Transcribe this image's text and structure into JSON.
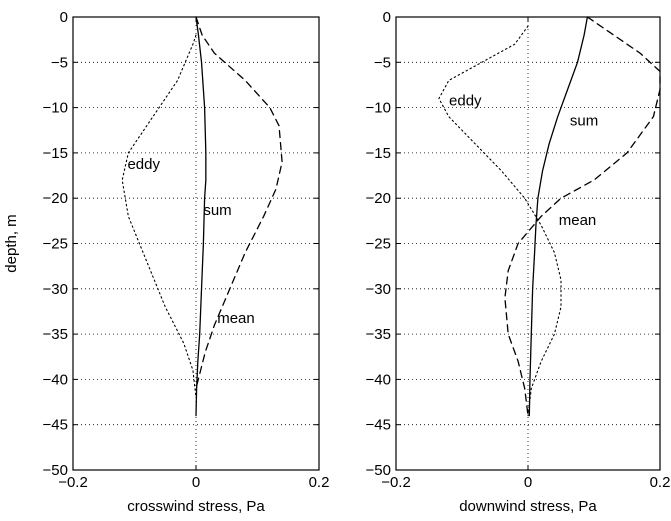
{
  "chart_data": [
    {
      "type": "line",
      "xlabel": "crosswind stress, Pa",
      "ylabel": "depth, m",
      "xlim": [
        -0.2,
        0.2
      ],
      "ylim": [
        -50,
        0
      ],
      "xticks": [
        -0.2,
        0,
        0.2
      ],
      "xtick_labels": [
        "−0.2",
        "0",
        "0.2"
      ],
      "yticks": [
        0,
        -5,
        -10,
        -15,
        -20,
        -25,
        -30,
        -35,
        -40,
        -45,
        -50
      ],
      "ytick_labels": [
        "0",
        "−5",
        "−10",
        "−15",
        "−20",
        "−25",
        "−30",
        "−35",
        "−40",
        "−45",
        "−50"
      ],
      "grid": true,
      "series": [
        {
          "name": "sum",
          "style": "solid",
          "x": [
            0.0,
            0.004,
            0.009,
            0.014,
            0.016,
            0.016,
            0.014,
            0.012,
            0.009,
            0.006,
            0.003,
            0.001,
            0.0
          ],
          "y": [
            0,
            -2,
            -5,
            -10,
            -15,
            -18,
            -20,
            -25,
            -30,
            -35,
            -38,
            -41,
            -44
          ]
        },
        {
          "name": "mean",
          "style": "dashed",
          "x": [
            0.0,
            0.01,
            0.03,
            0.08,
            0.12,
            0.135,
            0.14,
            0.13,
            0.11,
            0.08,
            0.055,
            0.03,
            0.015,
            0.0
          ],
          "y": [
            0,
            -2,
            -4,
            -7,
            -10,
            -12,
            -16,
            -19,
            -22,
            -26,
            -30,
            -34,
            -37,
            -41
          ]
        },
        {
          "name": "eddy",
          "style": "dotted",
          "x": [
            0.0,
            -0.005,
            -0.03,
            -0.08,
            -0.11,
            -0.12,
            -0.11,
            -0.08,
            -0.05,
            -0.02,
            -0.005,
            0.0
          ],
          "y": [
            -2,
            -3,
            -7,
            -12,
            -15,
            -18,
            -22,
            -27,
            -32,
            -36,
            -39,
            -42
          ]
        }
      ],
      "annotations": [
        {
          "text": "eddy",
          "x": -0.085,
          "y": -16.2
        },
        {
          "text": "sum",
          "x": 0.035,
          "y": -21.3
        },
        {
          "text": "mean",
          "x": 0.065,
          "y": -33.2
        }
      ]
    },
    {
      "type": "line",
      "xlabel": "downwind stress, Pa",
      "ylabel": "",
      "xlim": [
        -0.2,
        0.2
      ],
      "ylim": [
        -50,
        0
      ],
      "xticks": [
        -0.2,
        0,
        0.2
      ],
      "xtick_labels": [
        "−0.2",
        "0",
        "0.2"
      ],
      "yticks": [
        0,
        -5,
        -10,
        -15,
        -20,
        -25,
        -30,
        -35,
        -40,
        -45,
        -50
      ],
      "ytick_labels": [
        "0",
        "−5",
        "−10",
        "−15",
        "−20",
        "−25",
        "−30",
        "−35",
        "−40",
        "−45",
        "−50"
      ],
      "grid": true,
      "series": [
        {
          "name": "sum",
          "style": "solid",
          "x": [
            0.09,
            0.085,
            0.075,
            0.06,
            0.045,
            0.032,
            0.022,
            0.015,
            0.012,
            0.01,
            0.007,
            0.005,
            0.003,
            0.002
          ],
          "y": [
            0,
            -2,
            -5,
            -8,
            -11,
            -14,
            -17,
            -20,
            -23,
            -26,
            -30,
            -35,
            -40,
            -44
          ]
        },
        {
          "name": "mean",
          "style": "dashed",
          "x": [
            0.09,
            0.12,
            0.17,
            0.2,
            0.2,
            0.19,
            0.15,
            0.1,
            0.05,
            0.02,
            -0.015,
            -0.03,
            -0.035,
            -0.03,
            -0.015,
            -0.005,
            0.0
          ],
          "y": [
            0,
            -1.5,
            -4,
            -6,
            -8,
            -11,
            -15,
            -18,
            -20,
            -22,
            -25,
            -28,
            -31,
            -35,
            -38,
            -41,
            -44
          ]
        },
        {
          "name": "eddy",
          "style": "dotted",
          "x": [
            0.0,
            -0.02,
            -0.07,
            -0.12,
            -0.135,
            -0.12,
            -0.08,
            -0.04,
            -0.005,
            0.02,
            0.04,
            0.05,
            0.05,
            0.04,
            0.02,
            0.005,
            0.0
          ],
          "y": [
            -1,
            -3,
            -5,
            -7,
            -9,
            -11,
            -14,
            -17,
            -20,
            -23,
            -26,
            -29,
            -32,
            -35,
            -38,
            -41,
            -44
          ]
        }
      ],
      "annotations": [
        {
          "text": "eddy",
          "x": -0.095,
          "y": -9.2
        },
        {
          "text": "sum",
          "x": 0.085,
          "y": -11.4
        },
        {
          "text": "mean",
          "x": 0.075,
          "y": -22.4
        }
      ]
    }
  ]
}
